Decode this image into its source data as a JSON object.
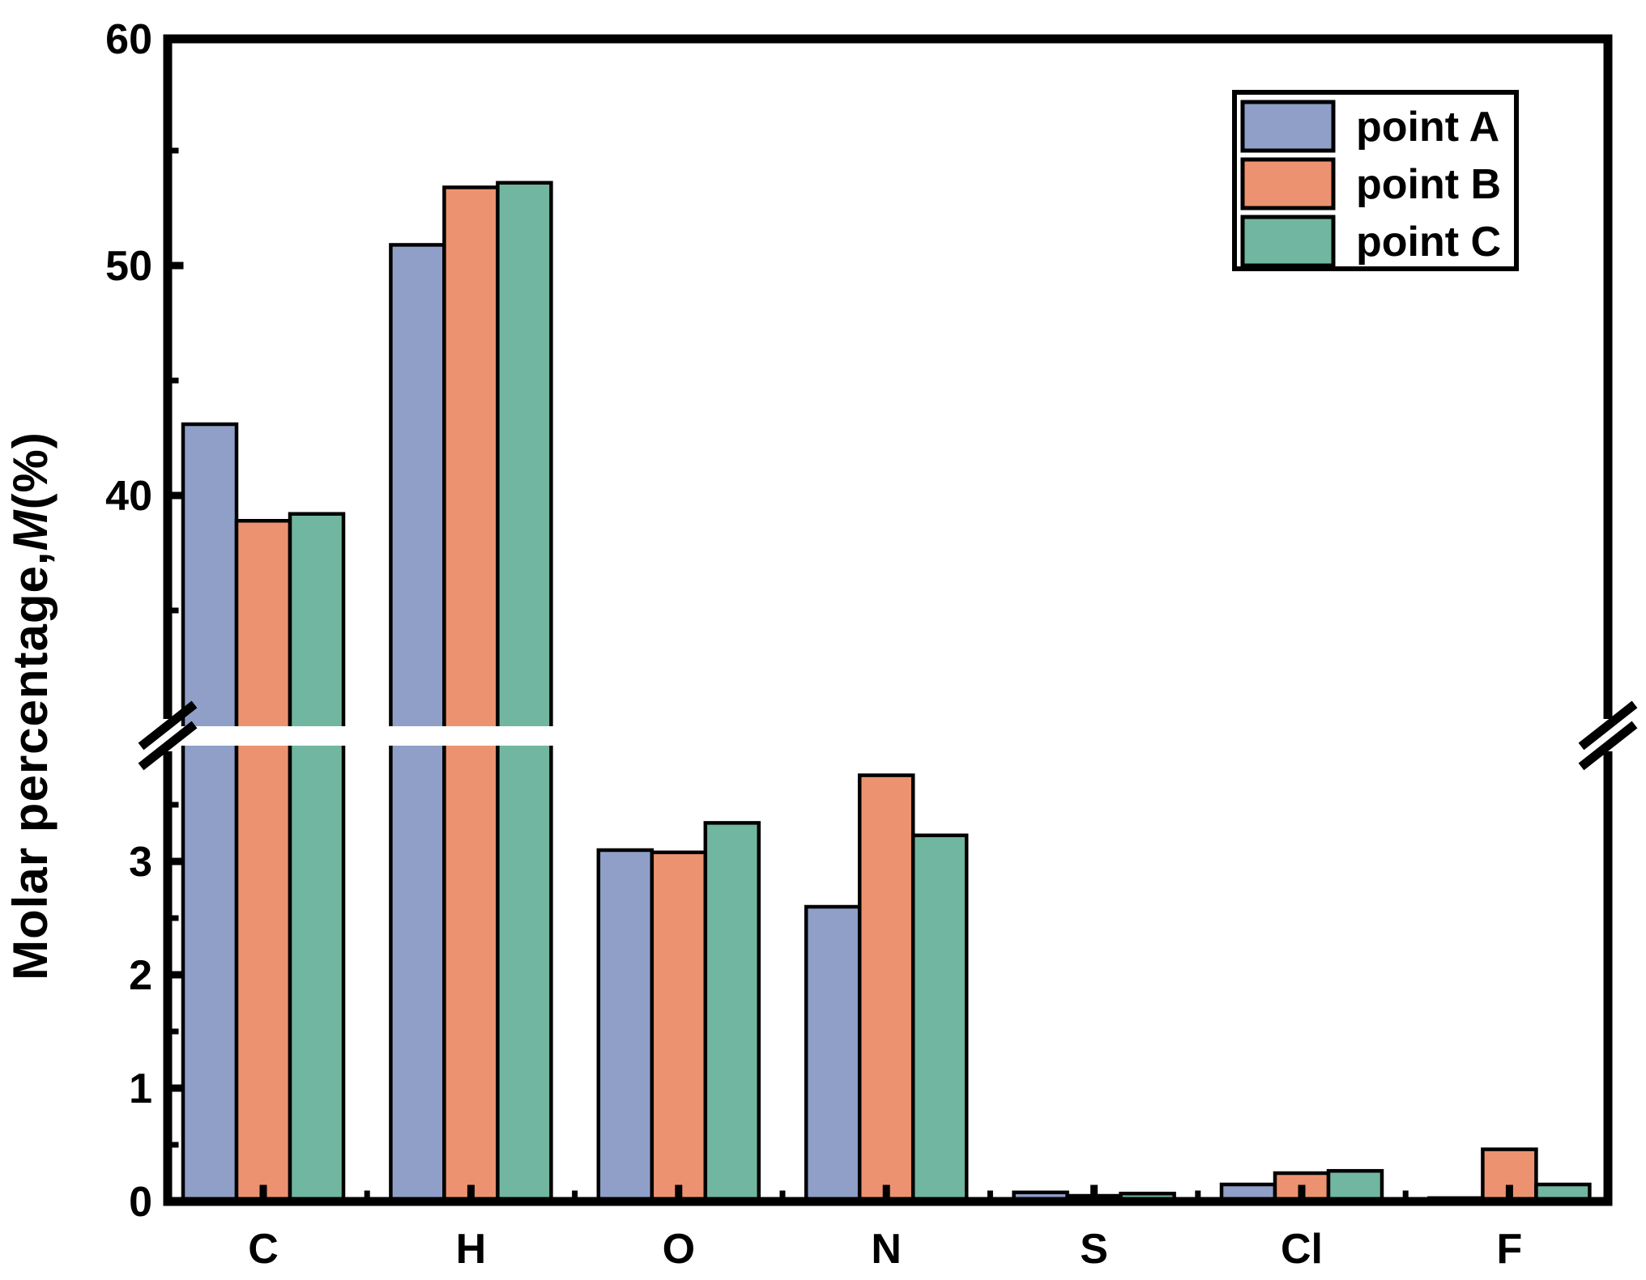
{
  "figure": {
    "background_color": "#ffffff",
    "axis_color": "#000000",
    "bar_edge_color": "#000000"
  },
  "y_axis": {
    "title_prefix": "Molar percentage,",
    "title_italic": "M",
    "title_suffix": "(%)",
    "upper_major_tick_labels": [
      "60",
      "50",
      "40"
    ],
    "lower_major_tick_labels": [
      "3",
      "2",
      "1",
      "0"
    ]
  },
  "x_axis": {
    "tick_labels": [
      "C",
      "H",
      "O",
      "N",
      "S",
      "Cl",
      "F"
    ]
  },
  "legend": {
    "position": "top-right",
    "items": [
      {
        "label": "point A",
        "color": "#8F9FC8"
      },
      {
        "label": "point B",
        "color": "#ED9270"
      },
      {
        "label": "point C",
        "color": "#71B6A0"
      }
    ]
  },
  "chart_data": {
    "type": "bar",
    "title": "",
    "xlabel": "",
    "ylabel": "Molar percentage, M(%)",
    "categories": [
      "C",
      "H",
      "O",
      "N",
      "S",
      "Cl",
      "F"
    ],
    "series": [
      {
        "name": "point A",
        "color": "#8F9FC8",
        "values": [
          43.1,
          50.9,
          3.1,
          2.6,
          0.08,
          0.15,
          0.03
        ]
      },
      {
        "name": "point B",
        "color": "#ED9270",
        "values": [
          38.9,
          53.4,
          3.08,
          3.76,
          0.05,
          0.25,
          0.46
        ]
      },
      {
        "name": "point C",
        "color": "#71B6A0",
        "values": [
          39.2,
          53.6,
          3.34,
          3.23,
          0.07,
          0.27,
          0.15
        ]
      }
    ],
    "axis_break": {
      "lower_range": [
        0,
        4
      ],
      "upper_range": [
        30,
        60
      ],
      "lower_major_ticks": [
        0,
        1,
        2,
        3
      ],
      "lower_minor_ticks": [
        0.5,
        1.5,
        2.5,
        3.5
      ],
      "upper_major_ticks": [
        40,
        50,
        60
      ],
      "upper_minor_ticks": [
        35,
        45,
        55
      ]
    },
    "grid": false,
    "legend_position": "top-right"
  }
}
